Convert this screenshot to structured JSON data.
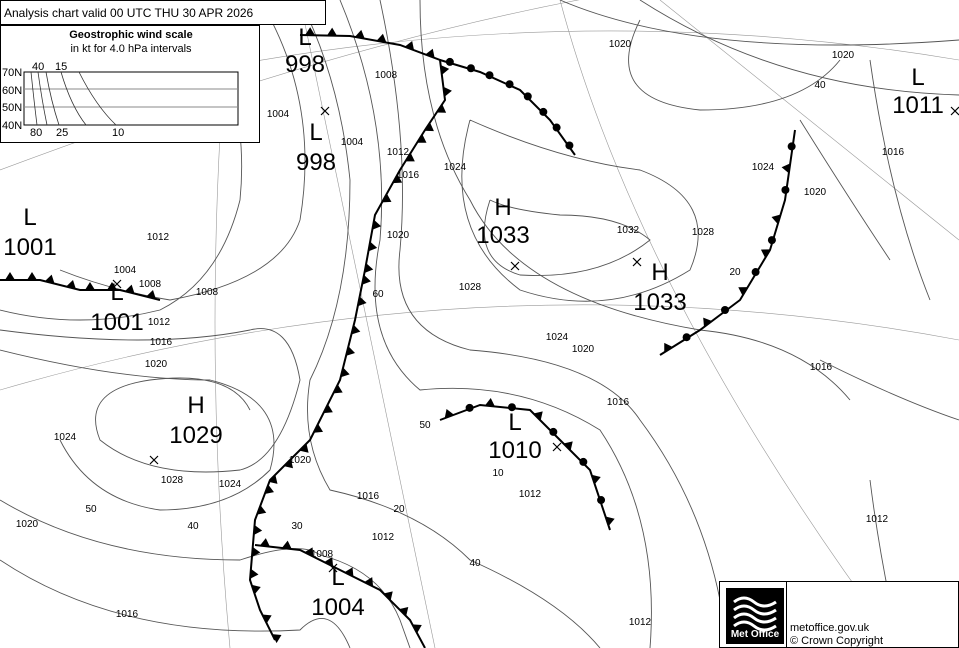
{
  "header": {
    "title": "Analysis chart  valid 00 UTC THU 30  APR 2026"
  },
  "wind_scale": {
    "title": "Geostrophic wind scale",
    "subtitle": "in kt for 4.0 hPa intervals",
    "lat_labels": [
      "70N",
      "60N",
      "50N",
      "40N"
    ],
    "top_labels": [
      "40",
      "15"
    ],
    "bottom_labels": [
      "80",
      "25",
      "10"
    ]
  },
  "pressure_systems": [
    {
      "type": "L",
      "value": "998"
    },
    {
      "type": "L",
      "value": "998"
    },
    {
      "type": "L",
      "value": "1001"
    },
    {
      "type": "L",
      "value": "1001"
    },
    {
      "type": "H",
      "value": "1033"
    },
    {
      "type": "H",
      "value": "1033"
    },
    {
      "type": "L",
      "value": "1011"
    },
    {
      "type": "H",
      "value": "1029"
    },
    {
      "type": "L",
      "value": "1010"
    },
    {
      "type": "L",
      "value": "1004"
    }
  ],
  "isobar_labels": [
    "1020",
    "1020",
    "40",
    "1024",
    "1020",
    "1016",
    "1028",
    "1032",
    "1024",
    "1020",
    "1016",
    "1012",
    "1008",
    "1004",
    "1004",
    "1012",
    "1004",
    "1008",
    "1008",
    "1012",
    "1016",
    "1020",
    "60",
    "1024",
    "1020",
    "1016",
    "1016",
    "1028",
    "1024",
    "1020",
    "1016",
    "1012",
    "1008",
    "1020",
    "1016",
    "50",
    "40",
    "30",
    "20",
    "10",
    "40",
    "50",
    "1012",
    "1012",
    "1012",
    "1024",
    "1028",
    "20"
  ],
  "fronts": [
    {
      "type": "cold"
    },
    {
      "type": "warm"
    },
    {
      "type": "cold"
    },
    {
      "type": "occluded"
    },
    {
      "type": "occluded"
    },
    {
      "type": "cold"
    }
  ],
  "footer": {
    "brand": "Met Office",
    "site": "metoffice.gov.uk",
    "copyright": "© Crown Copyright"
  },
  "colors": {
    "isobar": "#555555",
    "front": "#000000",
    "graticule": "#999999"
  }
}
